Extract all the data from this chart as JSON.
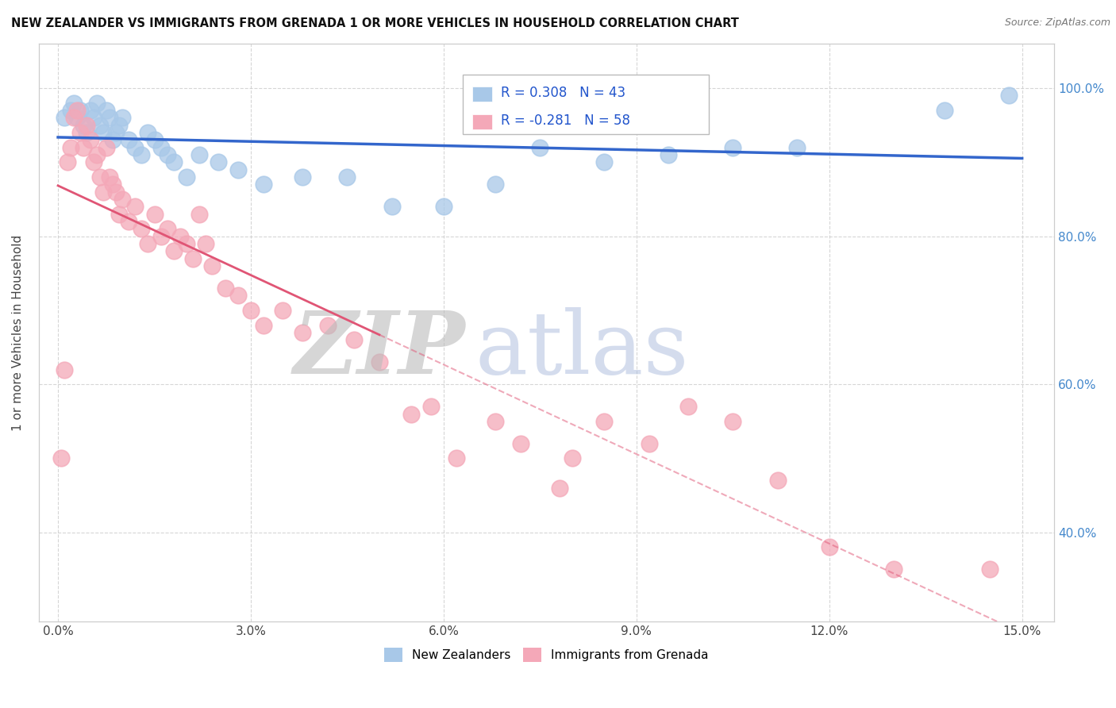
{
  "title": "NEW ZEALANDER VS IMMIGRANTS FROM GRENADA 1 OR MORE VEHICLES IN HOUSEHOLD CORRELATION CHART",
  "source": "Source: ZipAtlas.com",
  "xlim": [
    -0.3,
    15.5
  ],
  "ylim": [
    0.28,
    1.06
  ],
  "r_blue": 0.308,
  "n_blue": 43,
  "r_pink": -0.281,
  "n_pink": 58,
  "blue_color": "#A8C8E8",
  "pink_color": "#F4A8B8",
  "blue_line_color": "#3366CC",
  "pink_line_color": "#E05575",
  "blue_scatter_x": [
    0.1,
    0.2,
    0.25,
    0.3,
    0.35,
    0.4,
    0.45,
    0.5,
    0.55,
    0.6,
    0.65,
    0.7,
    0.75,
    0.8,
    0.85,
    0.9,
    0.95,
    1.0,
    1.1,
    1.2,
    1.3,
    1.4,
    1.5,
    1.6,
    1.7,
    1.8,
    2.0,
    2.2,
    2.5,
    2.8,
    3.2,
    3.8,
    4.5,
    5.2,
    6.0,
    6.8,
    7.5,
    8.5,
    9.5,
    10.5,
    11.5,
    13.8,
    14.8
  ],
  "blue_scatter_y": [
    0.96,
    0.97,
    0.98,
    0.96,
    0.97,
    0.95,
    0.94,
    0.97,
    0.96,
    0.98,
    0.95,
    0.94,
    0.97,
    0.96,
    0.93,
    0.94,
    0.95,
    0.96,
    0.93,
    0.92,
    0.91,
    0.94,
    0.93,
    0.92,
    0.91,
    0.9,
    0.88,
    0.91,
    0.9,
    0.89,
    0.87,
    0.88,
    0.88,
    0.84,
    0.84,
    0.87,
    0.92,
    0.9,
    0.91,
    0.92,
    0.92,
    0.97,
    0.99
  ],
  "pink_scatter_x": [
    0.05,
    0.1,
    0.15,
    0.2,
    0.25,
    0.3,
    0.35,
    0.4,
    0.45,
    0.5,
    0.55,
    0.6,
    0.65,
    0.7,
    0.75,
    0.8,
    0.85,
    0.9,
    0.95,
    1.0,
    1.1,
    1.2,
    1.3,
    1.4,
    1.5,
    1.6,
    1.7,
    1.8,
    1.9,
    2.0,
    2.1,
    2.2,
    2.3,
    2.4,
    2.6,
    2.8,
    3.0,
    3.2,
    3.5,
    3.8,
    4.2,
    4.6,
    5.0,
    5.5,
    5.8,
    6.2,
    6.8,
    7.2,
    7.8,
    8.0,
    8.5,
    9.2,
    9.8,
    10.5,
    11.2,
    12.0,
    13.0,
    14.5
  ],
  "pink_scatter_y": [
    0.5,
    0.62,
    0.9,
    0.92,
    0.96,
    0.97,
    0.94,
    0.92,
    0.95,
    0.93,
    0.9,
    0.91,
    0.88,
    0.86,
    0.92,
    0.88,
    0.87,
    0.86,
    0.83,
    0.85,
    0.82,
    0.84,
    0.81,
    0.79,
    0.83,
    0.8,
    0.81,
    0.78,
    0.8,
    0.79,
    0.77,
    0.83,
    0.79,
    0.76,
    0.73,
    0.72,
    0.7,
    0.68,
    0.7,
    0.67,
    0.68,
    0.66,
    0.63,
    0.56,
    0.57,
    0.5,
    0.55,
    0.52,
    0.46,
    0.5,
    0.55,
    0.52,
    0.57,
    0.55,
    0.47,
    0.38,
    0.35,
    0.35
  ]
}
